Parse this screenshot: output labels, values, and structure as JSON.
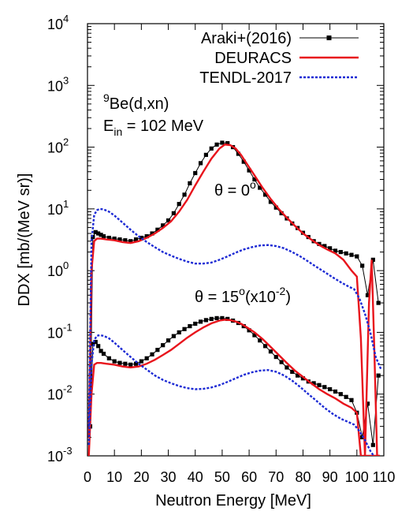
{
  "chart_data": {
    "type": "line",
    "xlabel": "Neutron Energy [MeV]",
    "ylabel": "DDX [mb/(MeV sr)]",
    "xlim": [
      0,
      110
    ],
    "ylim": [
      0.001,
      10000
    ],
    "yscale": "log",
    "grid": false,
    "legend_position": "top-right",
    "x_ticks": [
      0,
      10,
      20,
      30,
      40,
      50,
      60,
      70,
      80,
      90,
      100,
      110
    ],
    "x_tick_labels": [
      "0",
      "10",
      "20",
      "30",
      "40",
      "50",
      "60",
      "70",
      "80",
      "90",
      "100",
      "110"
    ],
    "y_tick_labels": [
      {
        "base": "10",
        "exp": "-3",
        "value": 0.001
      },
      {
        "base": "10",
        "exp": "-2",
        "value": 0.01
      },
      {
        "base": "10",
        "exp": "-1",
        "value": 0.1
      },
      {
        "base": "10",
        "exp": "0",
        "value": 1
      },
      {
        "base": "10",
        "exp": "1",
        "value": 10
      },
      {
        "base": "10",
        "exp": "2",
        "value": 100
      },
      {
        "base": "10",
        "exp": "3",
        "value": 1000
      },
      {
        "base": "10",
        "exp": "4",
        "value": 10000
      }
    ],
    "annotations": {
      "reaction_sup": "9",
      "reaction": "Be(d,xn)",
      "energy_main": "E",
      "energy_sub": "in",
      "energy_rest": " = 102 MeV",
      "theta0_main": "θ = 0",
      "theta0_sup": "o",
      "theta15_main": "θ = 15",
      "theta15_sup": "o",
      "theta15_paren": "(x10",
      "theta15_exp": "-2",
      "theta15_close": ")"
    },
    "series": [
      {
        "name": "Araki+(2016)",
        "role": "experiment",
        "color": "#000000",
        "marker": "square",
        "groups": [
          {
            "angle": "0",
            "x": [
              1,
              2,
              3,
              4,
              5,
              6,
              8,
              10,
              12,
              14,
              16,
              18,
              20,
              22,
              24,
              26,
              28,
              30,
              32,
              34,
              36,
              38,
              40,
              42,
              44,
              46,
              48,
              50,
              52,
              54,
              56,
              58,
              60,
              62,
              64,
              66,
              68,
              70,
              72,
              74,
              76,
              78,
              80,
              82,
              84,
              86,
              88,
              90,
              92,
              94,
              96,
              98,
              100,
              102,
              104,
              106,
              108
            ],
            "y": [
              0.003,
              3.5,
              4.2,
              4.0,
              3.8,
              3.6,
              3.4,
              3.3,
              3.2,
              3.1,
              3.0,
              3.2,
              3.4,
              3.6,
              4.0,
              4.6,
              5.4,
              6.5,
              8.5,
              12,
              17,
              26,
              38,
              55,
              75,
              95,
              110,
              118,
              116,
              100,
              78,
              58,
              42,
              30,
              22,
              17,
              13,
              10.5,
              8.5,
              7,
              5.8,
              4.9,
              4.1,
              3.5,
              3.0,
              2.7,
              2.5,
              2.3,
              2.1,
              2.0,
              1.9,
              1.8,
              1.7,
              1.2,
              0.4,
              1.5,
              0.3
            ]
          },
          {
            "angle": "15",
            "x": [
              1,
              2,
              3,
              4,
              5,
              6,
              8,
              10,
              12,
              14,
              16,
              18,
              20,
              22,
              24,
              26,
              28,
              30,
              32,
              34,
              36,
              38,
              40,
              42,
              44,
              46,
              48,
              50,
              52,
              54,
              56,
              58,
              60,
              62,
              64,
              66,
              68,
              70,
              72,
              74,
              76,
              78,
              80,
              82,
              84,
              86,
              88,
              90,
              92,
              94,
              96,
              98,
              100,
              102,
              104,
              106,
              108
            ],
            "y": [
              0.003,
              0.065,
              0.07,
              0.06,
              0.05,
              0.045,
              0.038,
              0.034,
              0.032,
              0.031,
              0.03,
              0.031,
              0.034,
              0.038,
              0.044,
              0.052,
              0.062,
              0.074,
              0.087,
              0.1,
              0.113,
              0.126,
              0.138,
              0.149,
              0.158,
              0.165,
              0.17,
              0.17,
              0.165,
              0.155,
              0.142,
              0.126,
              0.108,
              0.09,
              0.074,
              0.06,
              0.049,
              0.04,
              0.033,
              0.027,
              0.023,
              0.02,
              0.018,
              0.016,
              0.015,
              0.014,
              0.013,
              0.012,
              0.011,
              0.01,
              0.009,
              0.008,
              0.005,
              0.002,
              0.007,
              0.0015,
              0.02
            ]
          }
        ]
      },
      {
        "name": "DEURACS",
        "role": "calculation",
        "color": "#e8141c",
        "groups": [
          {
            "angle": "0",
            "x": [
              0.5,
              1.5,
              2.5,
              3.5,
              5,
              7,
              10,
              13,
              16,
              19,
              22,
              25,
              28,
              31,
              34,
              37,
              40,
              43,
              46,
              49,
              51,
              53,
              55,
              57,
              59,
              62,
              65,
              68,
              71,
              74,
              77,
              80,
              83,
              86,
              89,
              92,
              95,
              98,
              100,
              101.5,
              103,
              104.5,
              105.5,
              106.5,
              107.5,
              108.5
            ],
            "y": [
              0.002,
              1.0,
              3.0,
              3.3,
              3.3,
              3.2,
              3.1,
              2.9,
              2.8,
              3.0,
              3.4,
              4.0,
              4.9,
              6.3,
              9,
              14,
              24,
              40,
              65,
              95,
              110,
              108,
              95,
              75,
              55,
              35,
              22,
              14.5,
              10,
              7.2,
              5.3,
              4.0,
              3.2,
              2.6,
              2.2,
              1.9,
              1.5,
              1.0,
              0.8,
              0.08,
              0.001,
              0.3,
              1.5,
              0.05,
              0.001,
              0.001
            ]
          },
          {
            "angle": "15",
            "x": [
              0.5,
              1.5,
              2.5,
              3.5,
              5,
              7,
              10,
              13,
              16,
              19,
              22,
              25,
              28,
              31,
              34,
              37,
              40,
              43,
              46,
              49,
              51,
              53,
              55,
              57,
              59,
              62,
              65,
              68,
              71,
              74,
              77,
              80,
              83,
              86,
              89,
              92,
              95,
              98,
              100,
              101.5,
              103,
              104.5,
              105.5,
              106.5,
              107.5,
              108.5
            ],
            "y": [
              0.001,
              0.01,
              0.03,
              0.032,
              0.032,
              0.031,
              0.03,
              0.028,
              0.027,
              0.028,
              0.031,
              0.036,
              0.043,
              0.052,
              0.065,
              0.082,
              0.1,
              0.12,
              0.14,
              0.155,
              0.16,
              0.158,
              0.15,
              0.138,
              0.122,
              0.1,
              0.078,
              0.058,
              0.043,
              0.032,
              0.024,
              0.019,
              0.015,
              0.012,
              0.01,
              0.0085,
              0.007,
              0.006,
              0.005,
              0.001,
              0.001,
              0.001,
              0.001,
              0.001,
              0.001,
              0.001
            ]
          }
        ]
      },
      {
        "name": "TENDL-2017",
        "role": "evaluation",
        "color": "#1c2ad4",
        "dash": "dashed",
        "groups": [
          {
            "angle": "0",
            "x": [
              0.5,
              1.5,
              2.5,
              3.5,
              4.5,
              6,
              8,
              10,
              13,
              16,
              19,
              22,
              25,
              28,
              31,
              34,
              37,
              40,
              43,
              46,
              49,
              52,
              55,
              58,
              61,
              64,
              67,
              70,
              73,
              76,
              79,
              82,
              85,
              88,
              91,
              94,
              97,
              99,
              101,
              103,
              105,
              107,
              109
            ],
            "y": [
              0.003,
              3.0,
              8.0,
              9.5,
              10,
              9.8,
              9.0,
              7.8,
              6.0,
              4.6,
              3.6,
              2.9,
              2.4,
              2.0,
              1.75,
              1.55,
              1.4,
              1.3,
              1.3,
              1.35,
              1.5,
              1.7,
              1.95,
              2.2,
              2.4,
              2.55,
              2.6,
              2.5,
              2.3,
              2.0,
              1.7,
              1.4,
              1.15,
              0.95,
              0.78,
              0.65,
              0.55,
              0.5,
              0.35,
              0.2,
              0.1,
              0.04,
              0.025
            ]
          },
          {
            "angle": "15",
            "x": [
              0.5,
              1.5,
              2.5,
              3.5,
              4.5,
              6,
              8,
              10,
              13,
              16,
              19,
              22,
              25,
              28,
              31,
              34,
              37,
              40,
              43,
              46,
              49,
              52,
              55,
              58,
              61,
              64,
              67,
              70,
              73,
              76,
              79,
              82,
              85,
              88,
              91,
              94,
              97,
              99,
              101,
              103,
              105,
              107,
              109
            ],
            "y": [
              0.0015,
              0.03,
              0.075,
              0.088,
              0.09,
              0.088,
              0.08,
              0.068,
              0.052,
              0.04,
              0.031,
              0.025,
              0.02,
              0.017,
              0.015,
              0.0135,
              0.0125,
              0.012,
              0.0122,
              0.0128,
              0.014,
              0.0158,
              0.018,
              0.0205,
              0.0225,
              0.024,
              0.0245,
              0.023,
              0.02,
              0.0165,
              0.013,
              0.01,
              0.0078,
              0.006,
              0.0048,
              0.004,
              0.0035,
              0.0032,
              0.0025,
              0.0018,
              0.0012,
              0.0009,
              0.0009
            ]
          }
        ]
      }
    ]
  }
}
